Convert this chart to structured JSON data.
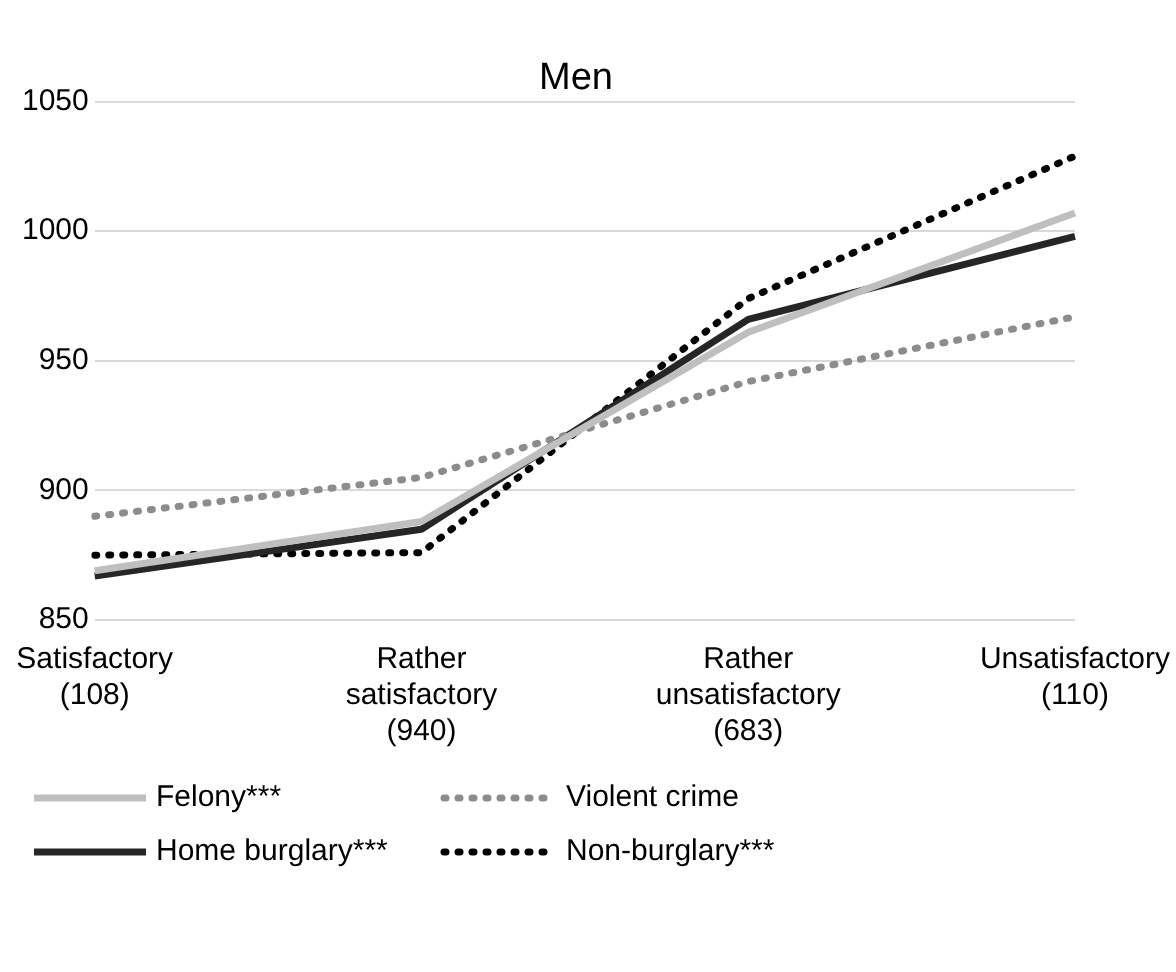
{
  "chart_data": {
    "type": "line",
    "title": "Men",
    "categories": [
      "Satisfactory (108)",
      "Rather satisfactory (940)",
      "Rather unsatisfactory (683)",
      "Unsatisfactory (110)"
    ],
    "series": [
      {
        "name": "Felony***",
        "color": "#bfbfbf",
        "line_style": "solid",
        "values": [
          869,
          888,
          961,
          1007
        ]
      },
      {
        "name": "Violent crime",
        "color": "#8c8c8c",
        "line_style": "dotted",
        "values": [
          890,
          905,
          942,
          967
        ]
      },
      {
        "name": "Home burglary***",
        "color": "#262626",
        "line_style": "solid",
        "values": [
          867,
          885,
          966,
          998
        ]
      },
      {
        "name": "Non-burglary***",
        "color": "#000000",
        "line_style": "dotted",
        "values": [
          875,
          876,
          974,
          1029
        ]
      }
    ],
    "ylim": [
      850,
      1050
    ],
    "yticks": [
      850,
      900,
      950,
      1000,
      1050
    ],
    "grid": "y",
    "legend": "bottom",
    "marker": "none"
  }
}
